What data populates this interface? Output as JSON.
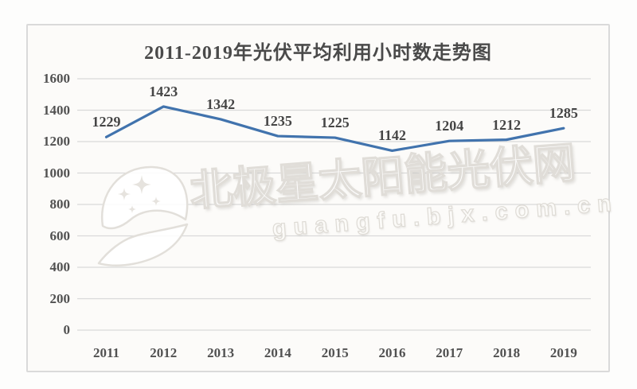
{
  "chart_data": {
    "type": "line",
    "title": "2011-2019年光伏平均利用小时数走势图",
    "categories": [
      "2011",
      "2012",
      "2013",
      "2014",
      "2015",
      "2016",
      "2017",
      "2018",
      "2019"
    ],
    "values": [
      1229,
      1423,
      1342,
      1235,
      1225,
      1142,
      1204,
      1212,
      1285
    ],
    "y_ticks": [
      0,
      200,
      400,
      600,
      800,
      1000,
      1200,
      1400,
      1600
    ],
    "ylim": [
      0,
      1600
    ],
    "xlabel": "",
    "ylabel": "",
    "grid": true,
    "legend": "none",
    "data_labels": true,
    "line_color": "#4173ad",
    "gridline_color": "#d9d9d9",
    "label_color": "#454545",
    "axis_text_color": "#515151",
    "title_color": "#4a4a4a",
    "plot_border_color": "#dadada"
  },
  "watermark": {
    "brand_text": "北极星太阳能光伏网",
    "url_text": "guangfu.bjx.com.cn",
    "logo": "crescent-moon-with-sparkle-stars"
  }
}
